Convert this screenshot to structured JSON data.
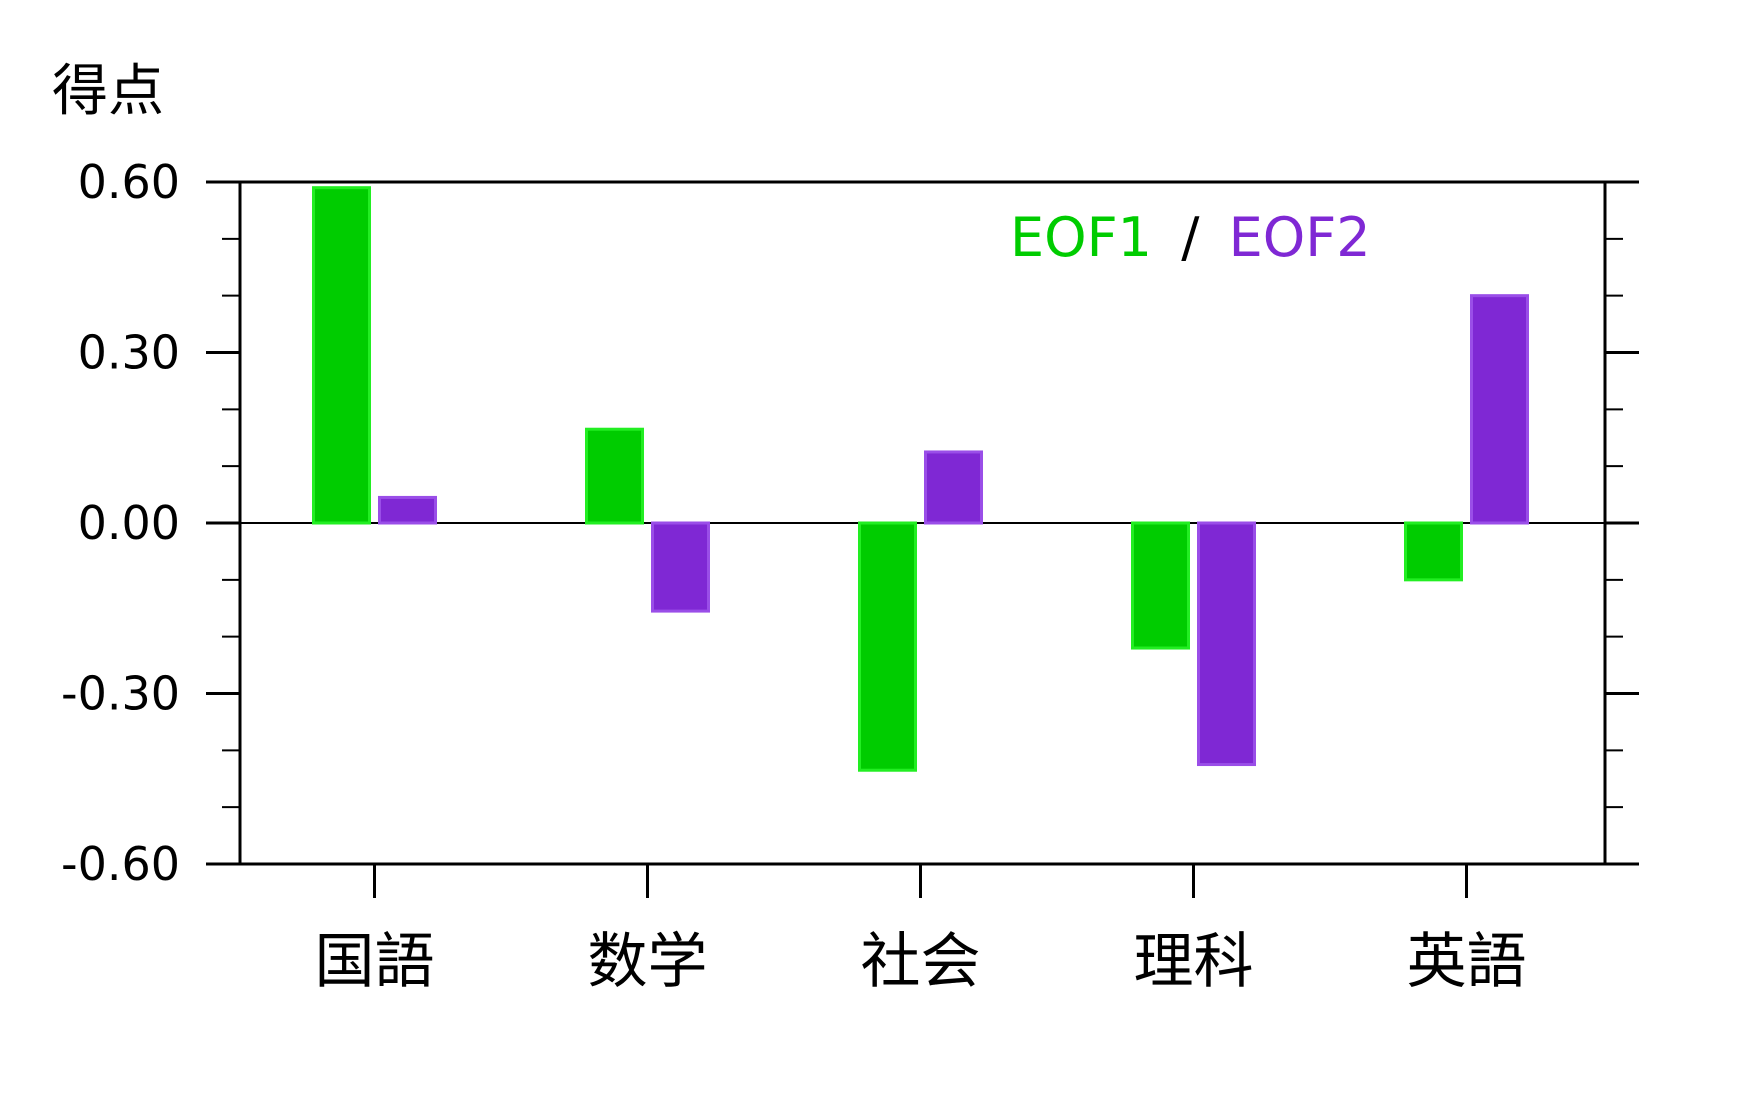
{
  "chart_data": {
    "type": "bar",
    "ylabel": "得点",
    "categories": [
      "国語",
      "数学",
      "社会",
      "理科",
      "英語"
    ],
    "series": [
      {
        "name": "EOF1",
        "color": "#00cc00",
        "values": [
          0.59,
          0.165,
          -0.435,
          -0.22,
          -0.1
        ]
      },
      {
        "name": "EOF2",
        "color": "#7f28d4",
        "values": [
          0.045,
          -0.155,
          0.125,
          -0.425,
          0.4
        ]
      }
    ],
    "legend": {
      "label_1": "EOF1",
      "separator": "/",
      "label_2": "EOF2",
      "placement": "top-right"
    },
    "ylim": [
      -0.6,
      0.6
    ],
    "yticks": [
      0.6,
      0.3,
      0.0,
      -0.3,
      -0.6
    ],
    "ytick_labels": [
      "0.60",
      "0.30",
      "0.00",
      "-0.30",
      "-0.60"
    ],
    "grid": false
  }
}
